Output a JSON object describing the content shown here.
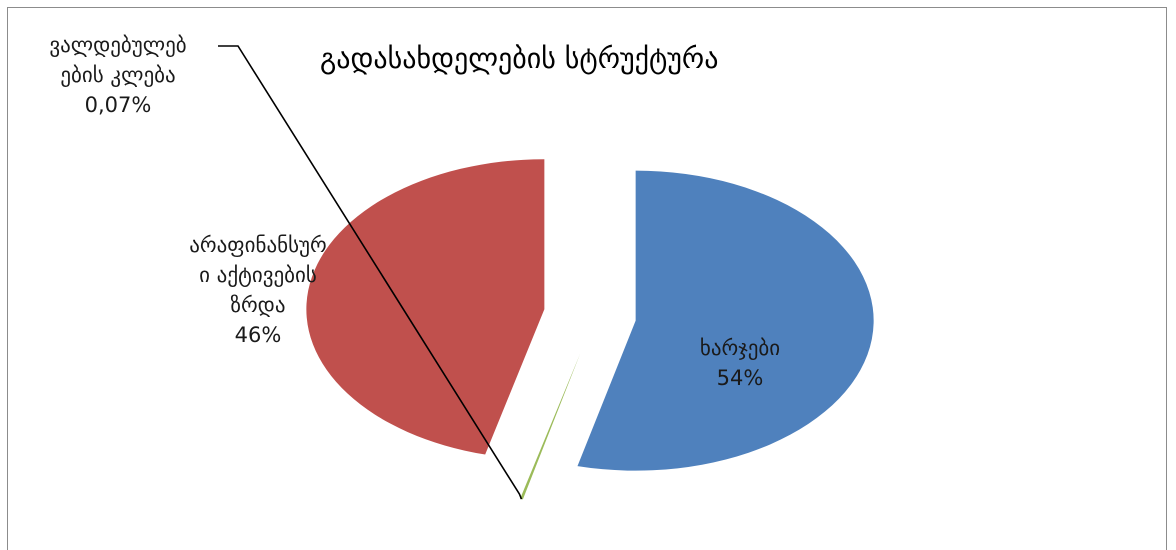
{
  "chart_data": {
    "type": "pie",
    "title": "გადასახდელების სტრუქტურა",
    "exploded": true,
    "legend": "none",
    "slices": [
      {
        "label_lines": [
          "ხარჯები"
        ],
        "value_label": "54%",
        "value": 53.93,
        "color": "#4f81bd"
      },
      {
        "label_lines": [
          "ვალდებულებ",
          "ების კლება"
        ],
        "value_label": "0,07%",
        "value": 0.07,
        "color": "#9bbb59"
      },
      {
        "label_lines": [
          "არაფინანსურ",
          "ი აქტივების",
          "ზრდა"
        ],
        "value_label": "46%",
        "value": 46.0,
        "color": "#c0504d"
      }
    ]
  }
}
